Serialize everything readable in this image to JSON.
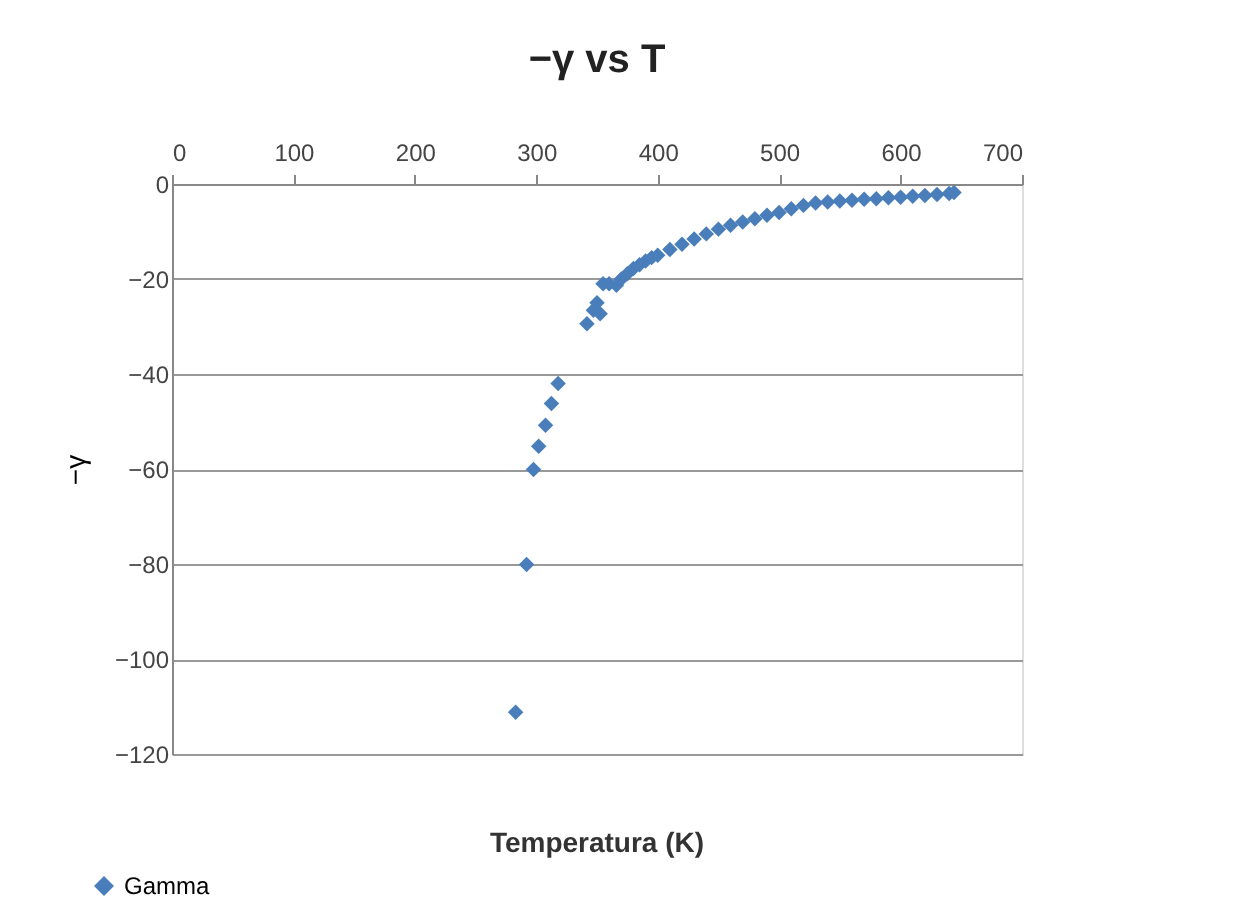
{
  "chart_data": {
    "type": "scatter",
    "title": "−γ  vs T",
    "xlabel": "Temperatura (K)",
    "ylabel": "−γ",
    "series": [
      {
        "name": "Gamma",
        "color": "#4a7ebb",
        "x": [
          283,
          292,
          297.7,
          302,
          307.6,
          312.5,
          318,
          341.7,
          347,
          350,
          352.6,
          355,
          360,
          366,
          370,
          375,
          380,
          385,
          390,
          395,
          400,
          410,
          420,
          430,
          440,
          450,
          460,
          470,
          480,
          490,
          500,
          510,
          520,
          530,
          540,
          550,
          560,
          570,
          580,
          590,
          600,
          610,
          620,
          630,
          640,
          644
        ],
        "values": [
          -111.2,
          -80.1,
          -60.1,
          -55.2,
          -50.8,
          -46.2,
          -42,
          -29.4,
          -26.6,
          -25,
          -27.3,
          -21,
          -21,
          -21.3,
          -20,
          -18.9,
          -17.8,
          -17,
          -16.2,
          -15.5,
          -15,
          -13.8,
          -12.7,
          -11.6,
          -10.5,
          -9.5,
          -8.7,
          -8,
          -7.3,
          -6.6,
          -6,
          -5.2,
          -4.5,
          -4,
          -3.8,
          -3.6,
          -3.4,
          -3.2,
          -3.1,
          -2.9,
          -2.8,
          -2.6,
          -2.4,
          -2.2,
          -2,
          -1.8
        ]
      }
    ],
    "xlim": [
      0,
      700
    ],
    "xticks": [
      0,
      100,
      200,
      300,
      400,
      500,
      600,
      700
    ],
    "ylim": [
      -120,
      0
    ],
    "yticks": [
      -120,
      -100,
      -80,
      -60,
      -40,
      -20,
      0
    ],
    "grid": "y",
    "legend": "bottom left",
    "marker": "diamond"
  }
}
